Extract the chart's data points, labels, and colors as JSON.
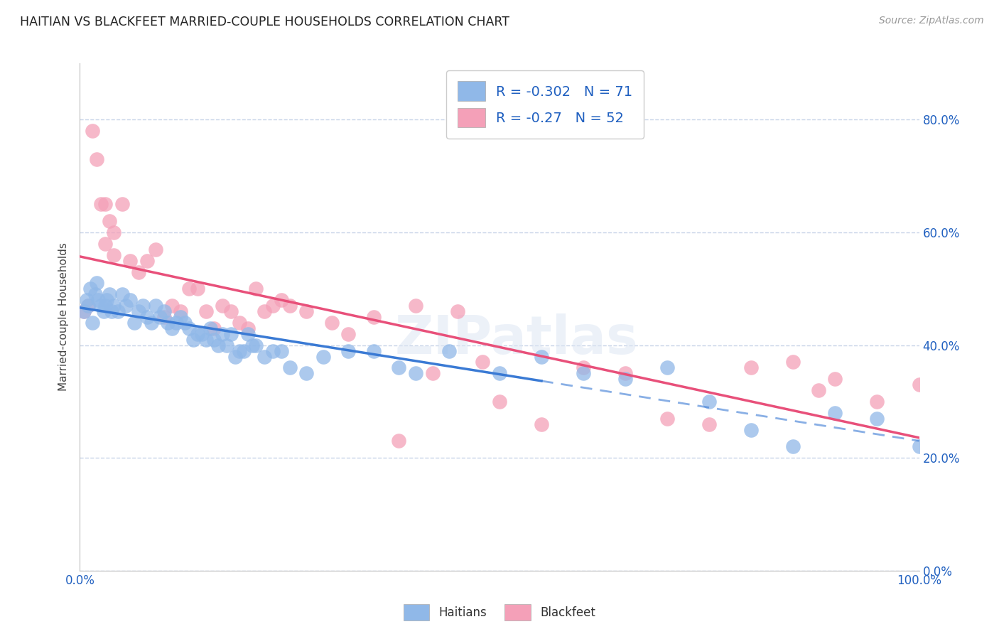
{
  "title": "HAITIAN VS BLACKFEET MARRIED-COUPLE HOUSEHOLDS CORRELATION CHART",
  "source": "Source: ZipAtlas.com",
  "ylabel": "Married-couple Households",
  "haitians_R": -0.302,
  "haitians_N": 71,
  "blackfeet_R": -0.27,
  "blackfeet_N": 52,
  "haitians_color": "#90b8e8",
  "blackfeet_color": "#f4a0b8",
  "haitians_line_color": "#3a7ad4",
  "blackfeet_line_color": "#e8507a",
  "legend_text_color": "#2060c0",
  "watermark": "ZIPatlas",
  "background_color": "#ffffff",
  "grid_color": "#c8d4e8",
  "xlim": [
    0,
    100
  ],
  "ylim": [
    0,
    90
  ],
  "yticks": [
    0,
    20,
    40,
    60,
    80
  ],
  "xticks": [
    0,
    10,
    20,
    30,
    40,
    50,
    60,
    70,
    80,
    90,
    100
  ],
  "haitians_x": [
    0.5,
    0.8,
    1.0,
    1.2,
    1.5,
    1.8,
    2.0,
    2.2,
    2.5,
    2.8,
    3.0,
    3.2,
    3.5,
    3.8,
    4.0,
    4.5,
    5.0,
    5.5,
    6.0,
    6.5,
    7.0,
    7.5,
    8.0,
    8.5,
    9.0,
    9.5,
    10.0,
    10.5,
    11.0,
    11.5,
    12.0,
    12.5,
    13.0,
    13.5,
    14.0,
    14.5,
    15.0,
    15.5,
    16.0,
    16.5,
    17.0,
    17.5,
    18.0,
    18.5,
    19.0,
    19.5,
    20.0,
    20.5,
    21.0,
    22.0,
    23.0,
    24.0,
    25.0,
    27.0,
    29.0,
    32.0,
    35.0,
    38.0,
    40.0,
    44.0,
    50.0,
    55.0,
    60.0,
    65.0,
    70.0,
    75.0,
    80.0,
    85.0,
    90.0,
    95.0,
    100.0
  ],
  "haitians_y": [
    46,
    48,
    47,
    50,
    44,
    49,
    51,
    48,
    47,
    46,
    47,
    48,
    49,
    46,
    47,
    46,
    49,
    47,
    48,
    44,
    46,
    47,
    45,
    44,
    47,
    45,
    46,
    44,
    43,
    44,
    45,
    44,
    43,
    41,
    42,
    42,
    41,
    43,
    41,
    40,
    42,
    40,
    42,
    38,
    39,
    39,
    42,
    40,
    40,
    38,
    39,
    39,
    36,
    35,
    38,
    39,
    39,
    36,
    35,
    39,
    35,
    38,
    35,
    34,
    36,
    30,
    25,
    22,
    28,
    27,
    22
  ],
  "blackfeet_x": [
    0.5,
    1.0,
    1.5,
    2.0,
    2.5,
    3.0,
    3.5,
    4.0,
    5.0,
    6.0,
    7.0,
    8.0,
    9.0,
    10.0,
    11.0,
    12.0,
    13.0,
    14.0,
    15.0,
    16.0,
    17.0,
    18.0,
    19.0,
    20.0,
    21.0,
    22.0,
    23.0,
    24.0,
    25.0,
    27.0,
    30.0,
    32.0,
    35.0,
    38.0,
    40.0,
    42.0,
    45.0,
    48.0,
    50.0,
    55.0,
    60.0,
    65.0,
    70.0,
    75.0,
    80.0,
    85.0,
    90.0,
    95.0,
    100.0,
    88.0,
    3.0,
    4.0
  ],
  "blackfeet_y": [
    46,
    47,
    78,
    73,
    65,
    58,
    62,
    56,
    65,
    55,
    53,
    55,
    57,
    45,
    47,
    46,
    50,
    50,
    46,
    43,
    47,
    46,
    44,
    43,
    50,
    46,
    47,
    48,
    47,
    46,
    44,
    42,
    45,
    23,
    47,
    35,
    46,
    37,
    30,
    26,
    36,
    35,
    27,
    26,
    36,
    37,
    34,
    30,
    33,
    32,
    65,
    60
  ]
}
